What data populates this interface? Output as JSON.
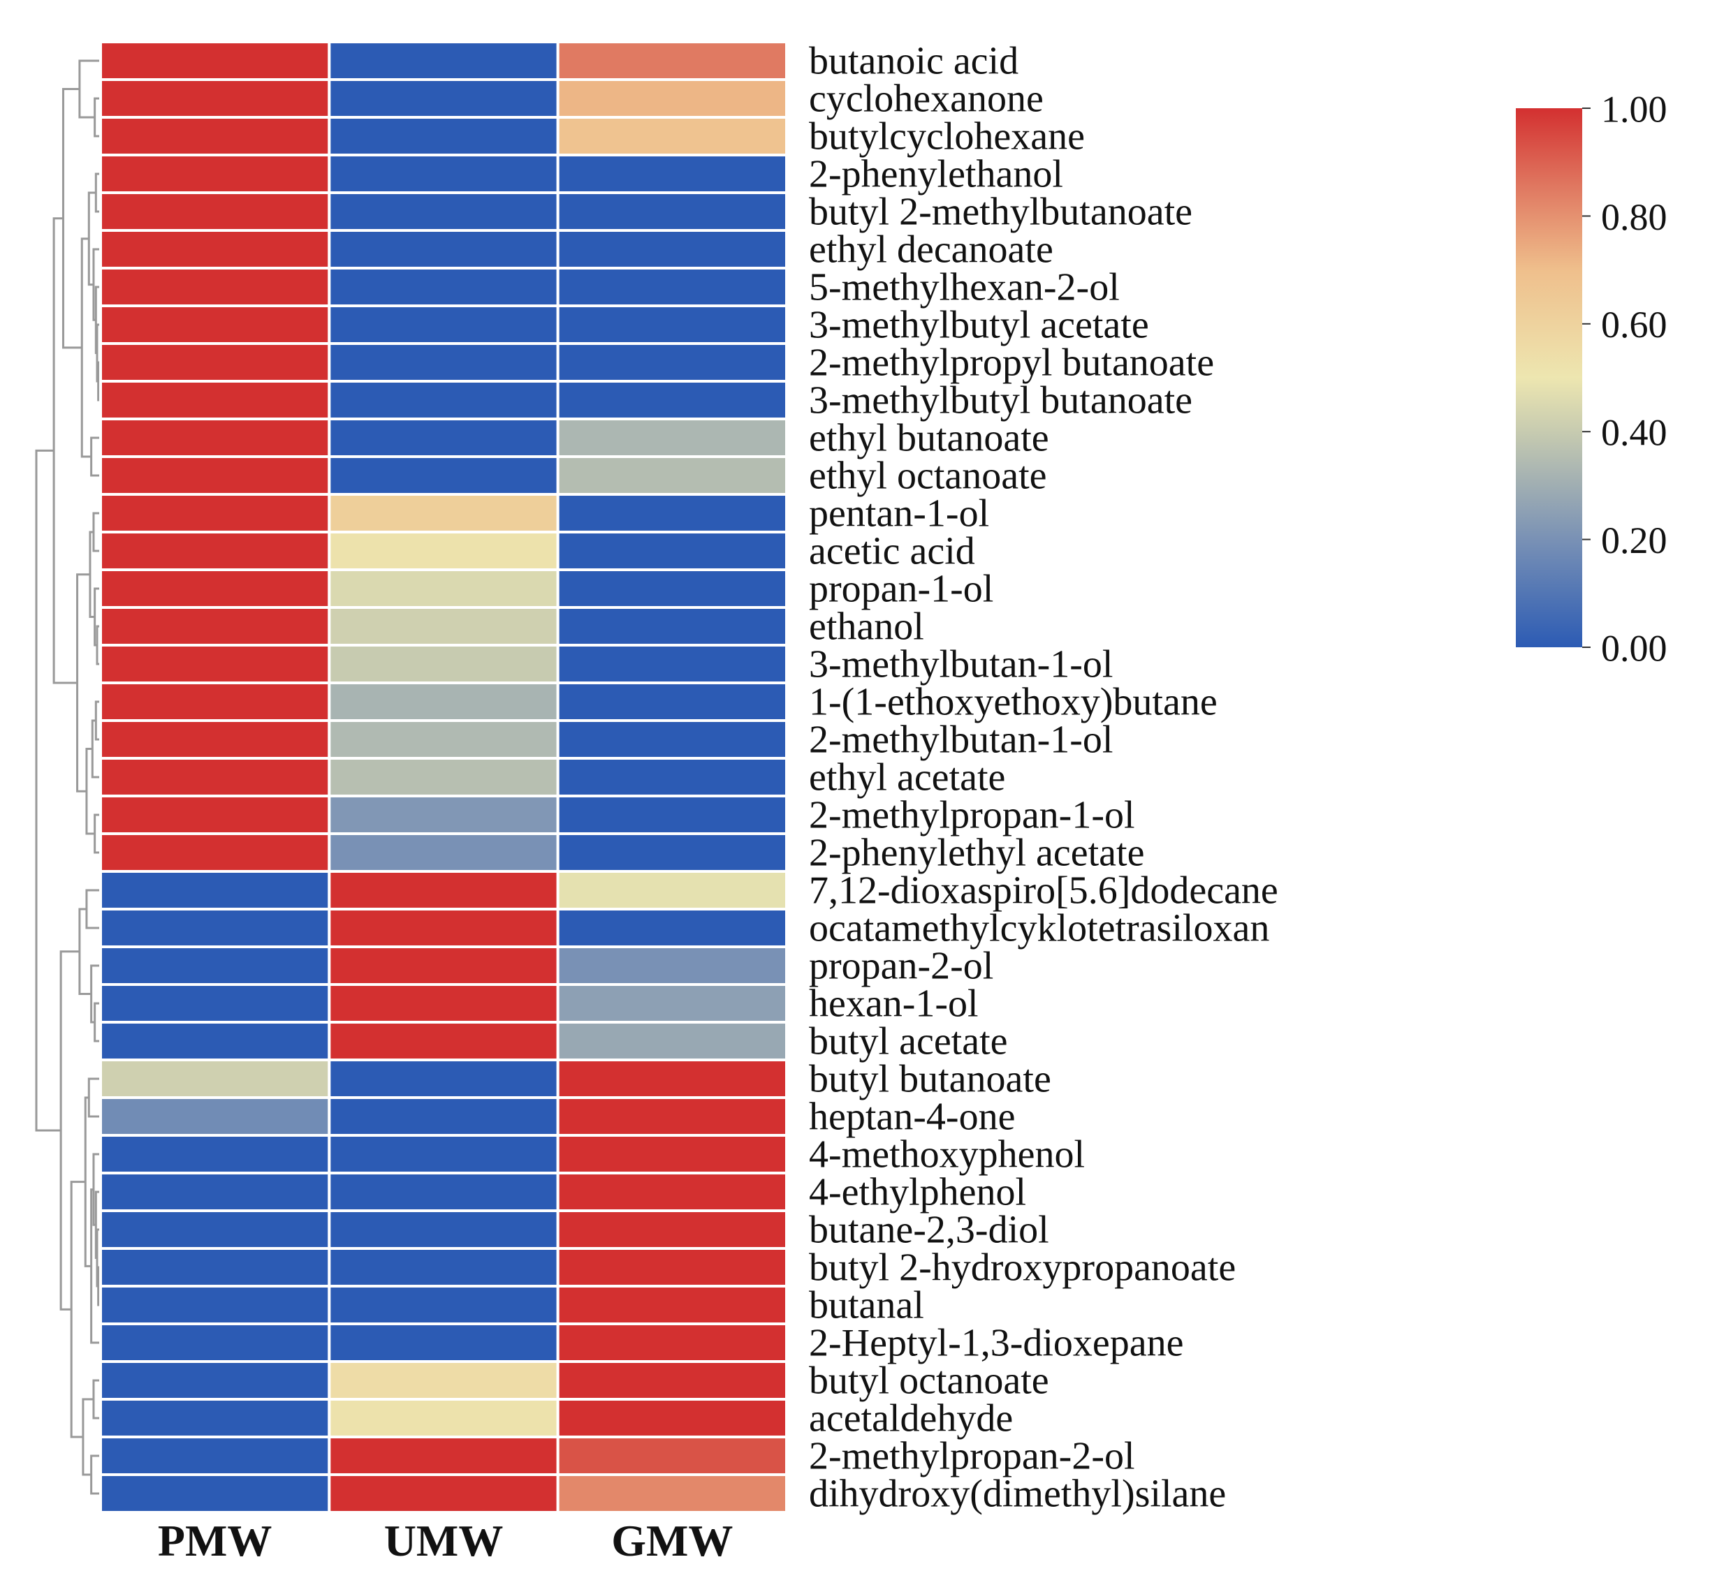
{
  "chart_data": {
    "type": "heatmap",
    "columns": [
      "PMW",
      "UMW",
      "GMW"
    ],
    "rows": [
      "butanoic acid",
      "cyclohexanone",
      "butylcyclohexane",
      "2-phenylethanol",
      "butyl 2-methylbutanoate",
      "ethyl decanoate",
      "5-methylhexan-2-ol",
      "3-methylbutyl acetate",
      "2-methylpropyl butanoate",
      "3-methylbutyl butanoate",
      "ethyl butanoate",
      "ethyl octanoate",
      "pentan-1-ol",
      "acetic acid",
      "propan-1-ol",
      "ethanol",
      "3-methylbutan-1-ol",
      "1-(1-ethoxyethoxy)butane",
      "2-methylbutan-1-ol",
      "ethyl acetate",
      "2-methylpropan-1-ol",
      "2-phenylethyl acetate",
      "7,12-dioxaspiro[5.6]dodecane",
      "ocatamethylcyklotetrasiloxan",
      "propan-2-ol",
      "hexan-1-ol",
      "butyl acetate",
      "butyl butanoate",
      "heptan-4-one",
      "4-methoxyphenol",
      "4-ethylphenol",
      "butane-2,3-diol",
      "butyl 2-hydroxypropanoate",
      "butanal",
      "2-Heptyl-1,3-dioxepane",
      "butyl octanoate",
      "acetaldehyde",
      "2-methylpropan-2-ol",
      "dihydroxy(dimethyl)silane"
    ],
    "values": [
      [
        1.0,
        0.0,
        0.85
      ],
      [
        1.0,
        0.0,
        0.72
      ],
      [
        1.0,
        0.0,
        0.68
      ],
      [
        1.0,
        0.0,
        0.0
      ],
      [
        1.0,
        0.0,
        0.0
      ],
      [
        1.0,
        0.0,
        0.0
      ],
      [
        1.0,
        0.0,
        0.0
      ],
      [
        1.0,
        0.0,
        0.0
      ],
      [
        1.0,
        0.0,
        0.0
      ],
      [
        1.0,
        0.0,
        0.0
      ],
      [
        1.0,
        0.0,
        0.33
      ],
      [
        1.0,
        0.0,
        0.35
      ],
      [
        1.0,
        0.62,
        0.0
      ],
      [
        1.0,
        0.52,
        0.0
      ],
      [
        1.0,
        0.45,
        0.0
      ],
      [
        1.0,
        0.42,
        0.0
      ],
      [
        1.0,
        0.4,
        0.0
      ],
      [
        1.0,
        0.32,
        0.0
      ],
      [
        1.0,
        0.34,
        0.0
      ],
      [
        1.0,
        0.36,
        0.0
      ],
      [
        1.0,
        0.22,
        0.0
      ],
      [
        1.0,
        0.2,
        0.0
      ],
      [
        0.0,
        1.0,
        0.48
      ],
      [
        0.0,
        1.0,
        0.0
      ],
      [
        0.0,
        1.0,
        0.2
      ],
      [
        0.0,
        1.0,
        0.25
      ],
      [
        0.0,
        1.0,
        0.28
      ],
      [
        0.42,
        0.0,
        1.0
      ],
      [
        0.18,
        0.0,
        1.0
      ],
      [
        0.0,
        0.0,
        1.0
      ],
      [
        0.0,
        0.0,
        1.0
      ],
      [
        0.0,
        0.0,
        1.0
      ],
      [
        0.0,
        0.0,
        1.0
      ],
      [
        0.0,
        0.0,
        1.0
      ],
      [
        0.0,
        0.0,
        1.0
      ],
      [
        0.0,
        0.55,
        1.0
      ],
      [
        0.0,
        0.52,
        1.0
      ],
      [
        0.0,
        1.0,
        0.93
      ],
      [
        0.0,
        1.0,
        0.82
      ]
    ],
    "colorbar": {
      "ticks": [
        "1.00",
        "0.80",
        "0.60",
        "0.40",
        "0.20",
        "0.00"
      ],
      "range": [
        0,
        1
      ],
      "stops": [
        {
          "value": 0.0,
          "color": "#2c5bb4"
        },
        {
          "value": 0.2,
          "color": "#7991b5"
        },
        {
          "value": 0.4,
          "color": "#c7cbb0"
        },
        {
          "value": 0.5,
          "color": "#ede6b0"
        },
        {
          "value": 0.7,
          "color": "#efbf8c"
        },
        {
          "value": 0.85,
          "color": "#e07a62"
        },
        {
          "value": 1.0,
          "color": "#d33030"
        }
      ]
    },
    "dendrogram": {
      "color": "#999999",
      "rows": "hierarchical clustering"
    },
    "grid": false,
    "legend": "top-right"
  }
}
